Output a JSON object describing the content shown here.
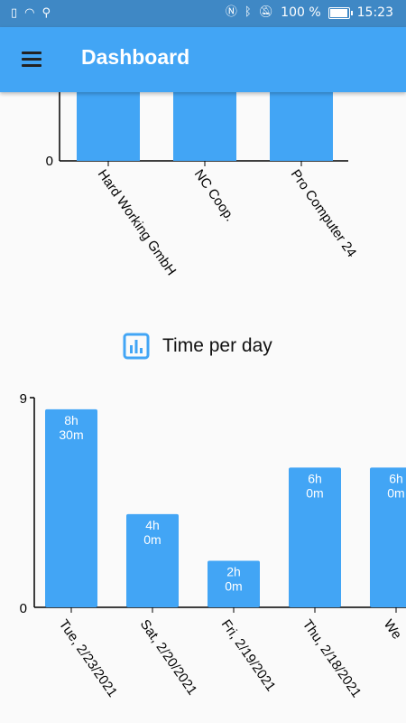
{
  "status_bar": {
    "battery_percent": "100 %",
    "time": "15:23",
    "icons_left": [
      "sim-icon",
      "wifi-icon",
      "usb-icon"
    ],
    "icons_right": [
      "nfc-icon",
      "bluetooth-icon",
      "mute-icon",
      "battery-icon"
    ]
  },
  "app_bar": {
    "title": "Dashboard",
    "menu_icon": "hamburger-menu-icon",
    "color": "#42A5F5"
  },
  "chart_data": [
    {
      "type": "bar",
      "categories": [
        "Hard Working GmbH",
        "NC Coop.",
        "Pro Computer 24"
      ],
      "y_tick_labels": [
        "0"
      ],
      "bar_color": "#42A5F5",
      "note": "partially scrolled"
    },
    {
      "type": "bar",
      "title": "Time per day",
      "title_icon": "bar-chart-icon",
      "categories": [
        "Tue, 2/23/2021",
        "Sat, 2/20/2021",
        "Fri, 2/19/2021",
        "Thu, 2/18/2021",
        "We"
      ],
      "values": [
        8.5,
        4.0,
        2.0,
        6.0,
        6.0
      ],
      "bar_labels": [
        [
          "8h",
          "30m"
        ],
        [
          "4h",
          "0m"
        ],
        [
          "2h",
          "0m"
        ],
        [
          "6h",
          "0m"
        ],
        [
          "6h",
          "0m"
        ]
      ],
      "ylim": [
        0,
        9
      ],
      "y_tick_labels": [
        "0",
        "9"
      ],
      "bar_color": "#42A5F5"
    }
  ]
}
